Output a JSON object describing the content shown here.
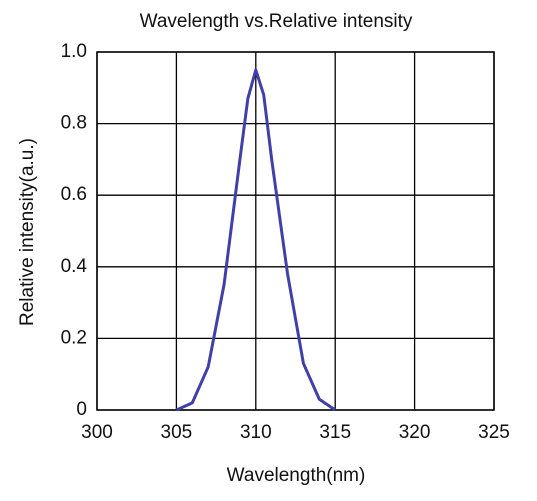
{
  "chart_data": {
    "type": "line",
    "title": "Wavelength vs.Relative intensity",
    "x_label": "Wavelength(nm)",
    "y_label": "Relative intensity(a.u.)",
    "x": [
      305,
      306,
      307,
      308,
      309,
      309.5,
      310,
      310.5,
      311,
      312,
      313,
      314,
      315
    ],
    "series": [
      {
        "color": "#4040a8",
        "values": [
          0,
          0.02,
          0.12,
          0.35,
          0.7,
          0.87,
          0.95,
          0.88,
          0.7,
          0.38,
          0.13,
          0.03,
          0
        ]
      }
    ],
    "xlim": [
      300,
      325
    ],
    "xticks": [
      300,
      305,
      310,
      315,
      320,
      325
    ],
    "ylim": [
      0,
      1
    ],
    "yticks": [
      0,
      0.2,
      0.4,
      0.6,
      0.8,
      {
        "value": 1,
        "label": "1.0"
      }
    ],
    "grid": true
  }
}
